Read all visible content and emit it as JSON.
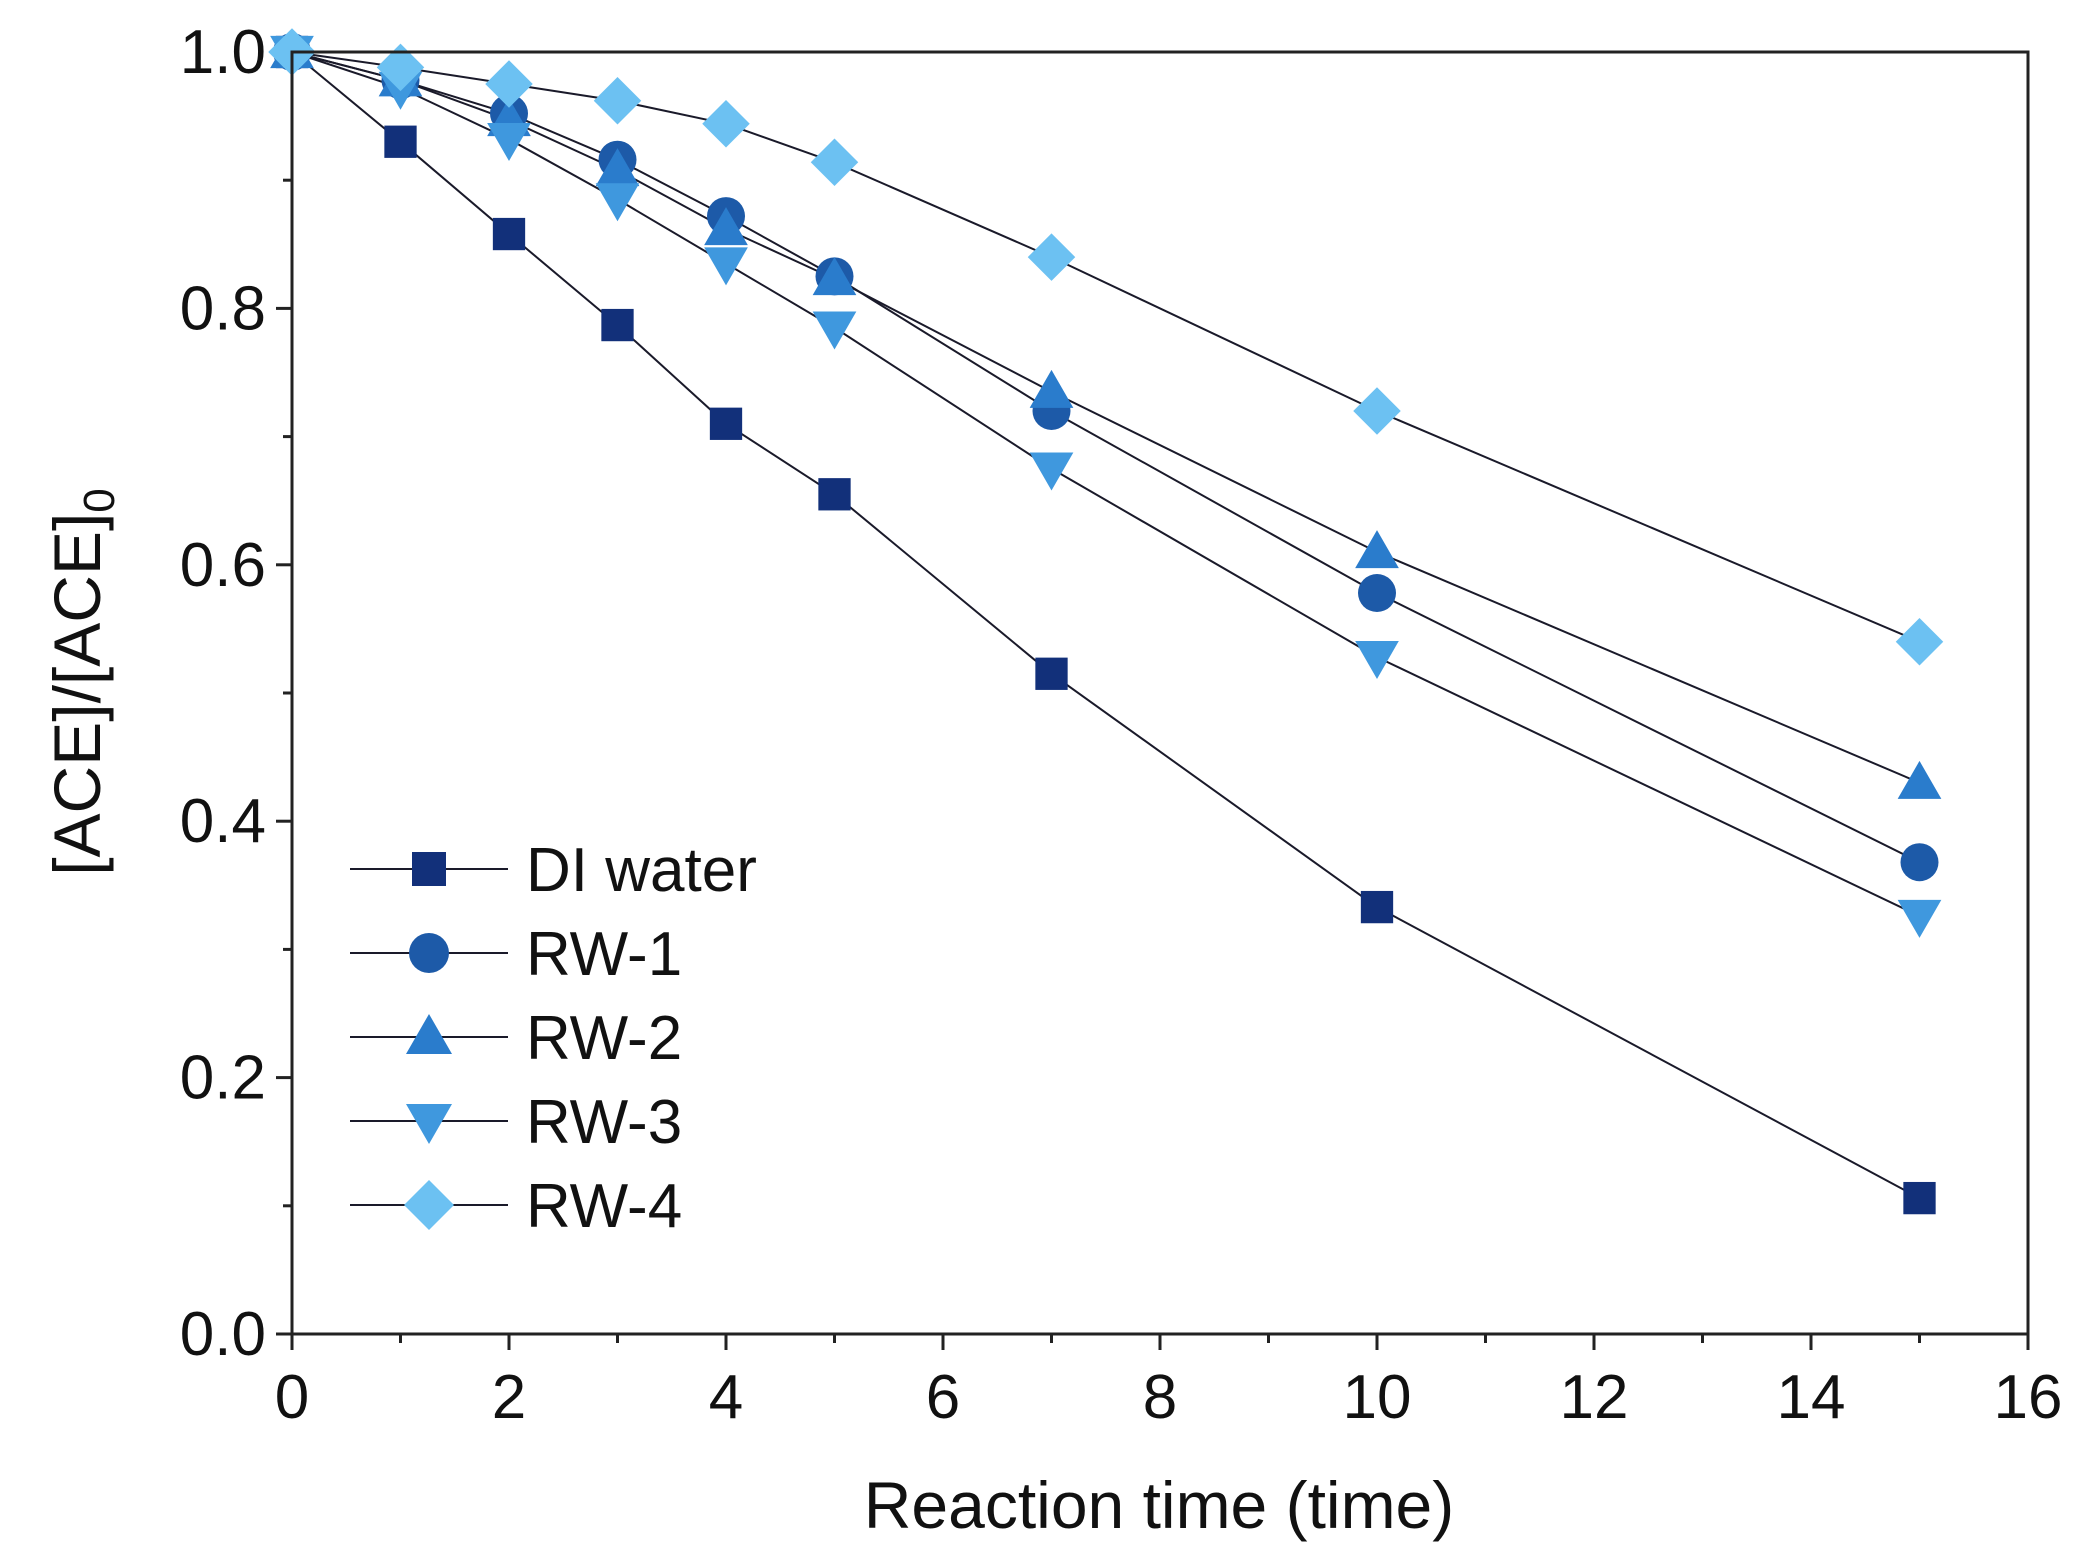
{
  "chart_data": {
    "type": "line",
    "title": "",
    "xlabel": "Reaction time (time)",
    "ylabel_main": "[ACE]/[ACE]",
    "ylabel_subscript": "0",
    "xlim": [
      0,
      16
    ],
    "ylim": [
      0.0,
      1.0
    ],
    "x_ticks": [
      0,
      2,
      4,
      6,
      8,
      10,
      12,
      14,
      16
    ],
    "x_tick_labels": [
      "0",
      "2",
      "4",
      "6",
      "8",
      "10",
      "12",
      "14",
      "16"
    ],
    "y_ticks": [
      0.0,
      0.2,
      0.4,
      0.6,
      0.8,
      1.0
    ],
    "y_tick_labels": [
      "0.0",
      "0.2",
      "0.4",
      "0.6",
      "0.8",
      "1.0"
    ],
    "grid": false,
    "legend_position": "bottom-left",
    "x": [
      0,
      1,
      2,
      3,
      4,
      5,
      7,
      10,
      15
    ],
    "series": [
      {
        "name": "DI water",
        "marker": "square",
        "color": "#12307a",
        "values": [
          1.0,
          0.93,
          0.858,
          0.787,
          0.71,
          0.655,
          0.515,
          0.333,
          0.106
        ]
      },
      {
        "name": "RW-1",
        "marker": "circle",
        "color": "#1d5aa8",
        "values": [
          1.0,
          0.978,
          0.952,
          0.916,
          0.872,
          0.825,
          0.72,
          0.578,
          0.368
        ]
      },
      {
        "name": "RW-2",
        "marker": "triangle-up",
        "color": "#2a7ccc",
        "values": [
          1.0,
          0.978,
          0.947,
          0.908,
          0.862,
          0.823,
          0.735,
          0.61,
          0.43
        ]
      },
      {
        "name": "RW-3",
        "marker": "triangle-down",
        "color": "#3f98de",
        "values": [
          1.0,
          0.972,
          0.932,
          0.885,
          0.835,
          0.785,
          0.675,
          0.528,
          0.326
        ]
      },
      {
        "name": "RW-4",
        "marker": "diamond",
        "color": "#6cc1f2",
        "values": [
          1.0,
          0.988,
          0.975,
          0.962,
          0.944,
          0.914,
          0.84,
          0.72,
          0.54
        ]
      }
    ]
  }
}
